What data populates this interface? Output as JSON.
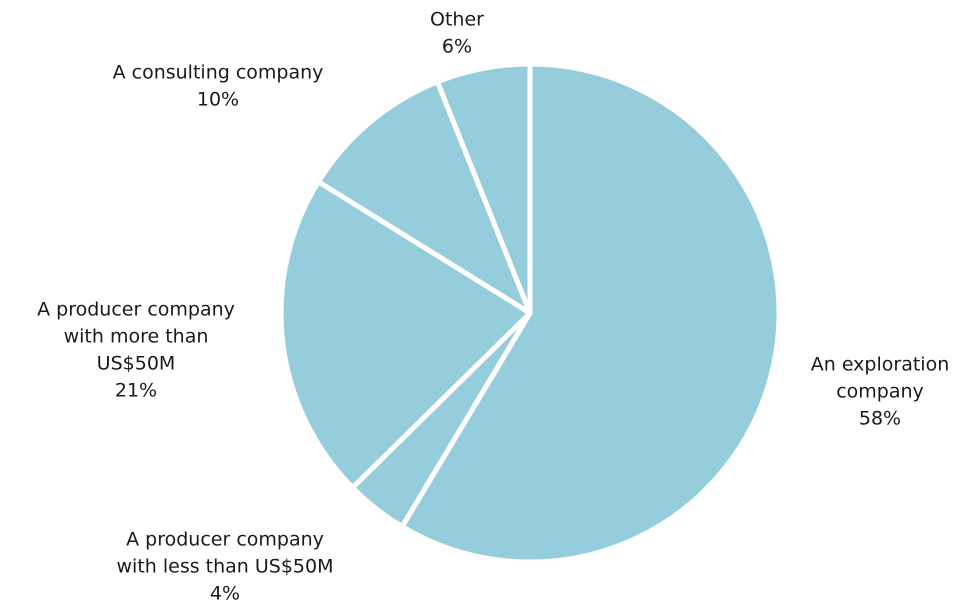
{
  "chart_data": {
    "type": "pie",
    "categories": [
      [
        "An exploration",
        "company"
      ],
      [
        "A producer company",
        "with less than US$50M"
      ],
      [
        "A producer company",
        "with more than",
        "US$50M"
      ],
      [
        "A consulting company"
      ],
      [
        "Other"
      ]
    ],
    "values": [
      58,
      4,
      21,
      10,
      6
    ],
    "value_labels": [
      "58%",
      "4%",
      "21%",
      "10%",
      "6%"
    ],
    "color": "#96cddc",
    "start_angle": 0,
    "direction": "clockwise"
  }
}
